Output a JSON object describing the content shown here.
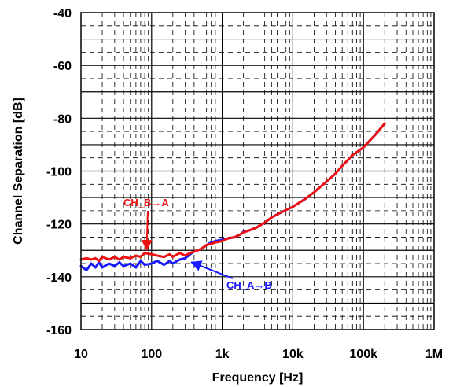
{
  "chart_data": {
    "type": "line",
    "xlabel": "Frequency [Hz]",
    "ylabel": "Channel Separation [dB]",
    "xscale": "log",
    "xlim": [
      10,
      1000000
    ],
    "ylim": [
      -160,
      -40
    ],
    "grid": true,
    "x_tick_labels": [
      "10",
      "100",
      "1k",
      "10k",
      "100k",
      "1M"
    ],
    "y_tick_labels": [
      "-40",
      "-60",
      "-80",
      "-100",
      "-120",
      "-140",
      "-160"
    ],
    "series": [
      {
        "name": "CH_A→B",
        "color": "#1a1aff",
        "x": [
          10,
          12,
          14,
          16,
          18,
          20,
          25,
          30,
          35,
          40,
          50,
          60,
          70,
          80,
          100,
          120,
          150,
          180,
          200,
          250,
          300,
          350,
          400,
          500,
          600,
          700,
          800,
          1000,
          1200,
          1500,
          1800,
          2000,
          2500,
          3000,
          4000,
          5000,
          7000,
          10000,
          15000,
          20000,
          30000,
          40000,
          50000,
          70000,
          100000,
          150000,
          200000
        ],
        "y": [
          -136,
          -137.5,
          -135,
          -136.5,
          -134.5,
          -136.5,
          -135,
          -136,
          -134.5,
          -136,
          -135,
          -136.5,
          -134,
          -135.5,
          -135,
          -134,
          -135.5,
          -134,
          -135,
          -133.5,
          -133,
          -131.5,
          -130.5,
          -129.5,
          -128,
          -127,
          -126.5,
          -126,
          -125.5,
          -125,
          -124,
          -123,
          -122.3,
          -121.5,
          -119.5,
          -117.5,
          -115.5,
          -113.5,
          -110.5,
          -108,
          -104,
          -101,
          -98,
          -94,
          -91,
          -86,
          -82
        ]
      },
      {
        "name": "CH_B→A",
        "color": "#ee1111",
        "x": [
          10,
          12,
          14,
          16,
          18,
          20,
          25,
          30,
          35,
          40,
          50,
          60,
          70,
          80,
          100,
          120,
          150,
          180,
          200,
          250,
          300,
          350,
          400,
          500,
          600,
          700,
          800,
          1000,
          1200,
          1500,
          1800,
          2000,
          2500,
          3000,
          4000,
          5000,
          7000,
          10000,
          15000,
          20000,
          30000,
          40000,
          50000,
          70000,
          100000,
          150000,
          200000
        ],
        "y": [
          -133.5,
          -133,
          -133.5,
          -133,
          -134,
          -132.5,
          -133.5,
          -132.5,
          -133.5,
          -132.5,
          -133,
          -132,
          -132.5,
          -131,
          -131.5,
          -132,
          -132.5,
          -131.5,
          -132.5,
          -131,
          -132,
          -131,
          -130.5,
          -129.5,
          -128,
          -127.5,
          -127,
          -126.5,
          -125.5,
          -125,
          -124,
          -123.2,
          -122.3,
          -121.5,
          -119.5,
          -117.5,
          -115.5,
          -113.5,
          -110.5,
          -108,
          -104,
          -101,
          -98,
          -94,
          -91,
          -86,
          -82
        ]
      }
    ],
    "annotations": [
      {
        "text": "CH_B→A",
        "color": "#ee1111",
        "arrow_to": {
          "x": 85,
          "y": -131
        }
      },
      {
        "text": "CH_A→B",
        "color": "#1a1aff",
        "arrow_to": {
          "x": 330,
          "y": -133
        }
      }
    ]
  }
}
